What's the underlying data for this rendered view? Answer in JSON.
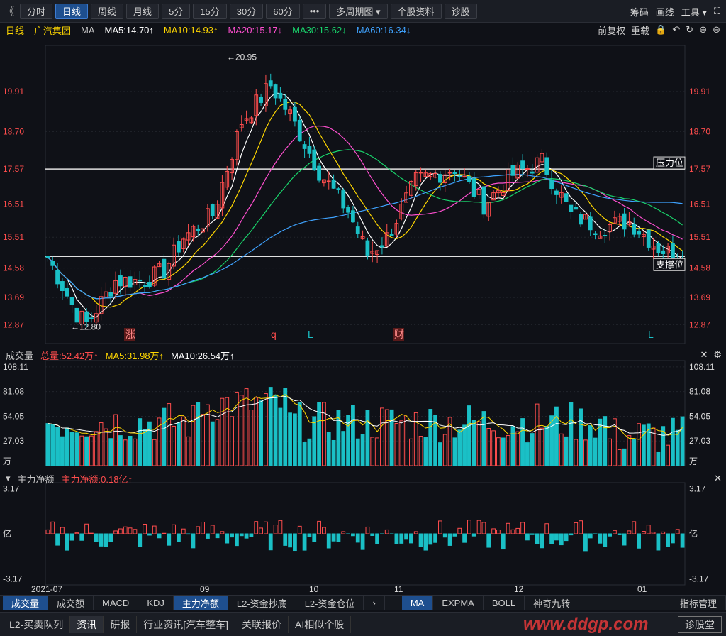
{
  "toolbar": {
    "back": "《",
    "tabs": [
      "分时",
      "日线",
      "周线",
      "月线",
      "5分",
      "15分",
      "30分",
      "60分",
      "•••",
      "多周期图 ▾",
      "个股资料",
      "诊股"
    ],
    "active_index": 1,
    "right": [
      "筹码",
      "画线",
      "工具 ▾",
      "⛶"
    ]
  },
  "info": {
    "period": "日线",
    "stock": "广汽集团",
    "ma_label": "MA",
    "ma5": "MA5:14.70↑",
    "ma10": "MA10:14.93↑",
    "ma20": "MA20:15.17↓",
    "ma30": "MA30:15.62↓",
    "ma60": "MA60:16.34↓",
    "adjust": "前复权",
    "reload": "重载"
  },
  "price_axis": [
    "19.91",
    "18.70",
    "17.57",
    "16.51",
    "15.51",
    "14.58",
    "13.69",
    "12.87"
  ],
  "annotations": {
    "high": "←20.95",
    "low": "←12.80",
    "resistance": "压力位",
    "support": "支撑位",
    "marks": [
      "涨",
      "q",
      "L",
      "财",
      "L"
    ]
  },
  "volume": {
    "label": "成交量",
    "total": "总量:52.42万↑",
    "ma5": "MA5:31.98万↑",
    "ma10": "MA10:26.54万↑",
    "axis": [
      "108.11",
      "81.08",
      "54.05",
      "27.03",
      "万"
    ]
  },
  "netflow": {
    "label": "主力净额",
    "value": "主力净额:0.18亿↑",
    "axis": [
      "3.17",
      "亿",
      "-3.17"
    ]
  },
  "x_axis": [
    "2021-07",
    "09",
    "10",
    "11",
    "12",
    "01"
  ],
  "bottom_tabs": [
    "成交量",
    "成交额",
    "MACD",
    "KDJ",
    "主力净额",
    "L2-资金抄底",
    "L2-资金仓位",
    "›",
    "MA",
    "EXPMA",
    "BOLL",
    "神奇九转",
    "指标管理"
  ],
  "bottom_bar": [
    "L2-买卖队列",
    "资讯",
    "研报",
    "行业资讯[汽车整车]",
    "关联报价",
    "AI相似个股",
    "诊股堂"
  ],
  "watermark": "www.ddgp.com"
}
